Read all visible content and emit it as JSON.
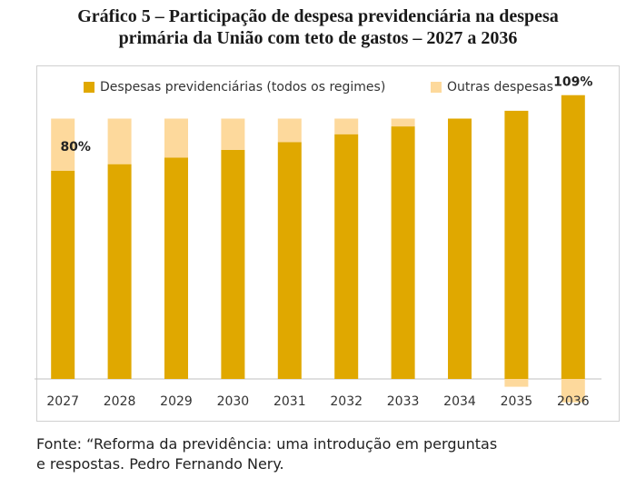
{
  "title_line1": "Gráfico 5 – Participação de despesa previdenciária na despesa",
  "title_line2": "primária da União com teto de gastos – 2027 a 2036",
  "source_line1": "Fonte: “Reforma da previdência: uma introdução em perguntas",
  "source_line2": "e respostas. Pedro Fernando Nery.",
  "colors": {
    "previdencia": "#E0A800",
    "outras": "#FDD99C",
    "axis": "#bfbfbf"
  },
  "chart_data": {
    "type": "bar",
    "stacked": true,
    "categories": [
      "2027",
      "2028",
      "2029",
      "2030",
      "2031",
      "2032",
      "2033",
      "2034",
      "2035",
      "2036"
    ],
    "series": [
      {
        "name": "Despesas previdenciárias (todos os regimes)",
        "values": [
          80,
          82.5,
          85,
          88,
          91,
          94,
          97,
          100,
          103,
          109
        ]
      },
      {
        "name": "Outras despesas",
        "values": [
          20,
          17.5,
          15,
          12,
          9,
          6,
          3,
          0,
          -3,
          -9
        ]
      }
    ],
    "data_labels": [
      {
        "category": "2027",
        "text": "80%"
      },
      {
        "category": "2036",
        "text": "109%"
      }
    ],
    "legend": "top",
    "grid": false,
    "ylim": [
      -9,
      109
    ]
  }
}
